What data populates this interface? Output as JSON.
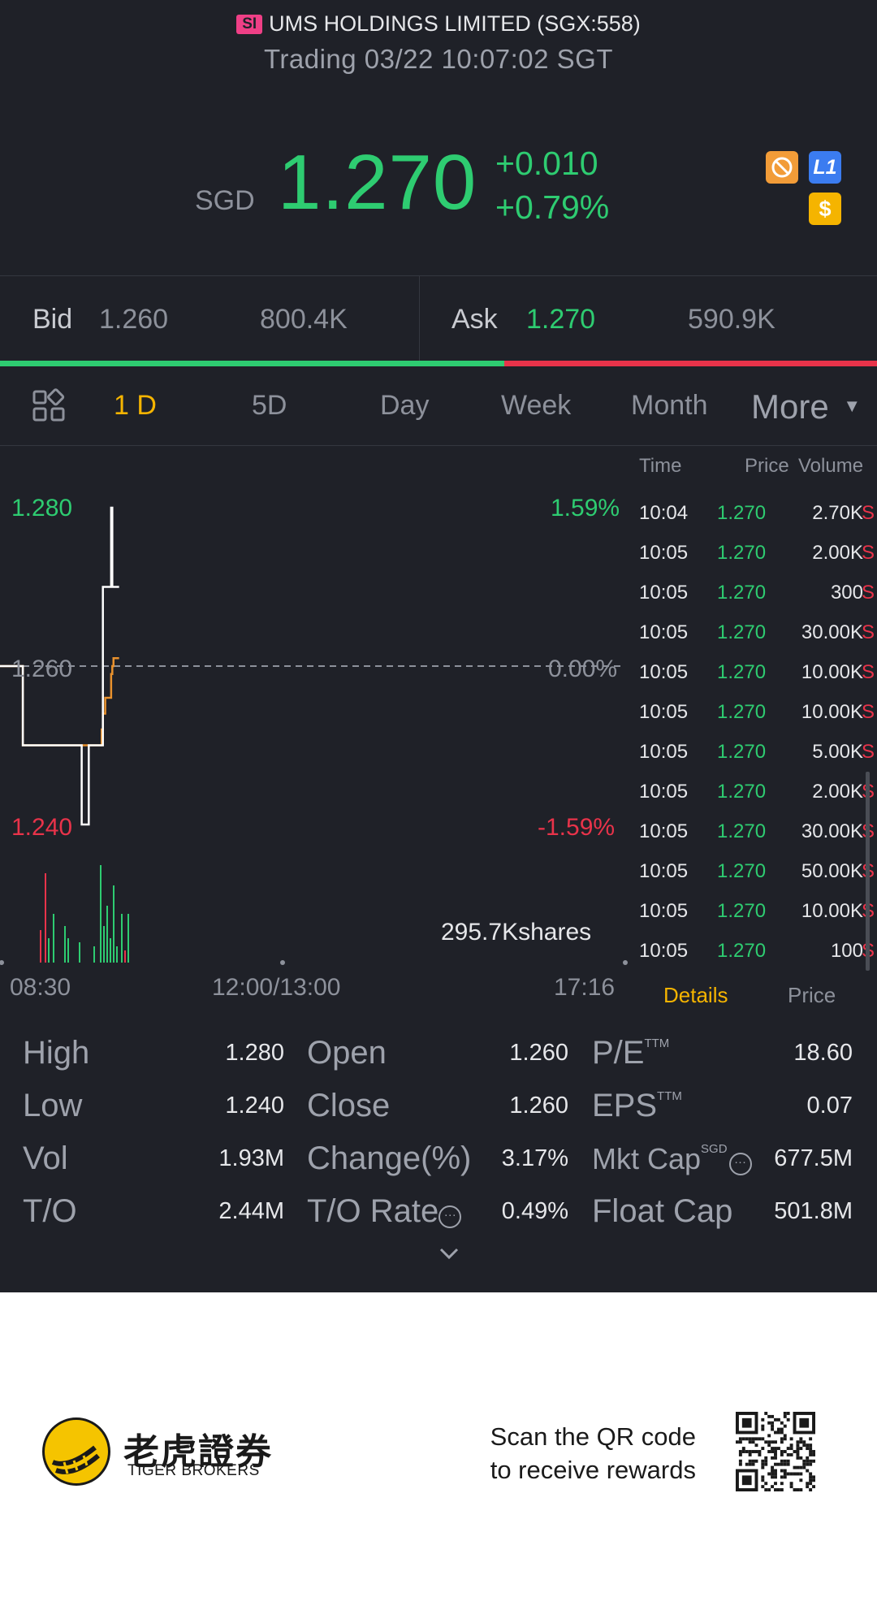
{
  "header": {
    "market_badge": "SI",
    "title": "UMS HOLDINGS LIMITED (SGX:558)",
    "status": "Trading 03/22 10:07:02 SGT"
  },
  "quote": {
    "currency": "SGD",
    "price": "1.270",
    "change": "+0.010",
    "change_pct": "+0.79%",
    "icons": [
      "no-shorting-icon",
      "level1-icon",
      "dollar-icon"
    ],
    "l1_label": "L1",
    "dollar_label": "$"
  },
  "bidask": {
    "bid_label": "Bid",
    "bid_price": "1.260",
    "bid_size": "800.4K",
    "ask_label": "Ask",
    "ask_price": "1.270",
    "ask_size": "590.9K",
    "bid_ratio": 0.575
  },
  "tabs": {
    "items": [
      "1 D",
      "5D",
      "Day",
      "Week",
      "Month"
    ],
    "active": "1 D",
    "more": "More"
  },
  "chart": {
    "y_top": "1.280",
    "y_mid": "1.260",
    "y_bottom": "1.240",
    "pct_top": "1.59%",
    "pct_mid": "0.00%",
    "pct_bottom": "-1.59%",
    "volume_label": "295.7Kshares",
    "x_labels": [
      "08:30",
      "12:00/13:00",
      "17:16"
    ]
  },
  "chart_data": {
    "type": "line",
    "title": "",
    "xlabel": "",
    "ylabel": "",
    "ylim": [
      1.24,
      1.28
    ],
    "x": [
      "08:30",
      "08:47",
      "08:48",
      "09:37",
      "09:38",
      "09:44",
      "09:46",
      "09:47",
      "09:49",
      "09:50",
      "09:55",
      "09:56",
      "09:58",
      "10:03",
      "10:04",
      "10:05",
      "10:07"
    ],
    "series": [
      {
        "values": [
          1.26,
          1.26,
          1.25,
          1.25,
          1.24,
          1.25,
          1.25,
          1.25,
          1.25,
          1.25,
          1.25,
          1.27,
          1.27,
          1.28,
          1.27,
          1.27,
          1.27
        ]
      },
      {
        "values": [
          1.26,
          1.26,
          1.25,
          1.25,
          1.25,
          1.25,
          1.25,
          1.25,
          1.25,
          1.25,
          1.252,
          1.254,
          1.256,
          1.259,
          1.26,
          1.261,
          1.261
        ]
      }
    ],
    "prev_close": 1.26,
    "x_ticks": [
      "08:30",
      "12:00/13:00",
      "17:16"
    ],
    "grid": false
  },
  "ticks": {
    "headers": {
      "time": "Time",
      "price": "Price",
      "volume": "Volume"
    },
    "rows": [
      {
        "time": "10:04",
        "price": "1.270",
        "vol": "2.70K",
        "side": "S"
      },
      {
        "time": "10:05",
        "price": "1.270",
        "vol": "2.00K",
        "side": "S"
      },
      {
        "time": "10:05",
        "price": "1.270",
        "vol": "300",
        "side": "S"
      },
      {
        "time": "10:05",
        "price": "1.270",
        "vol": "30.00K",
        "side": "S"
      },
      {
        "time": "10:05",
        "price": "1.270",
        "vol": "10.00K",
        "side": "S"
      },
      {
        "time": "10:05",
        "price": "1.270",
        "vol": "10.00K",
        "side": "S"
      },
      {
        "time": "10:05",
        "price": "1.270",
        "vol": "5.00K",
        "side": "S"
      },
      {
        "time": "10:05",
        "price": "1.270",
        "vol": "2.00K",
        "side": "S"
      },
      {
        "time": "10:05",
        "price": "1.270",
        "vol": "30.00K",
        "side": "S"
      },
      {
        "time": "10:05",
        "price": "1.270",
        "vol": "50.00K",
        "side": "S"
      },
      {
        "time": "10:05",
        "price": "1.270",
        "vol": "10.00K",
        "side": "S"
      },
      {
        "time": "10:05",
        "price": "1.270",
        "vol": "100",
        "side": "S"
      }
    ],
    "tab_details": "Details",
    "tab_price": "Price"
  },
  "stats": {
    "high_label": "High",
    "high": "1.280",
    "low_label": "Low",
    "low": "1.240",
    "vol_label": "Vol",
    "vol": "1.93M",
    "to_label": "T/O",
    "to": "2.44M",
    "open_label": "Open",
    "open": "1.260",
    "close_label": "Close",
    "close": "1.260",
    "change_label": "Change(%)",
    "change": "3.17%",
    "torate_label": "T/O Rate",
    "torate": "0.49%",
    "pe_label": "P/E",
    "pe_sup": "TTM",
    "pe": "18.60",
    "eps_label": "EPS",
    "eps_sup": "TTM",
    "eps": "0.07",
    "mktcap_label": "Mkt Cap",
    "mktcap_sup": "SGD",
    "mktcap": "677.5M",
    "floatcap_label": "Float Cap",
    "floatcap": "501.8M"
  },
  "footer": {
    "brand_cn": "老虎證券",
    "brand_en": "TIGER BROKERS",
    "scan_line1": "Scan the QR code",
    "scan_line2": "to receive rewards"
  },
  "colors": {
    "background": "#1f2128",
    "up": "#2ecc71",
    "down": "#e8334a",
    "accent": "#f5b400",
    "avg_line": "#e8912d"
  }
}
